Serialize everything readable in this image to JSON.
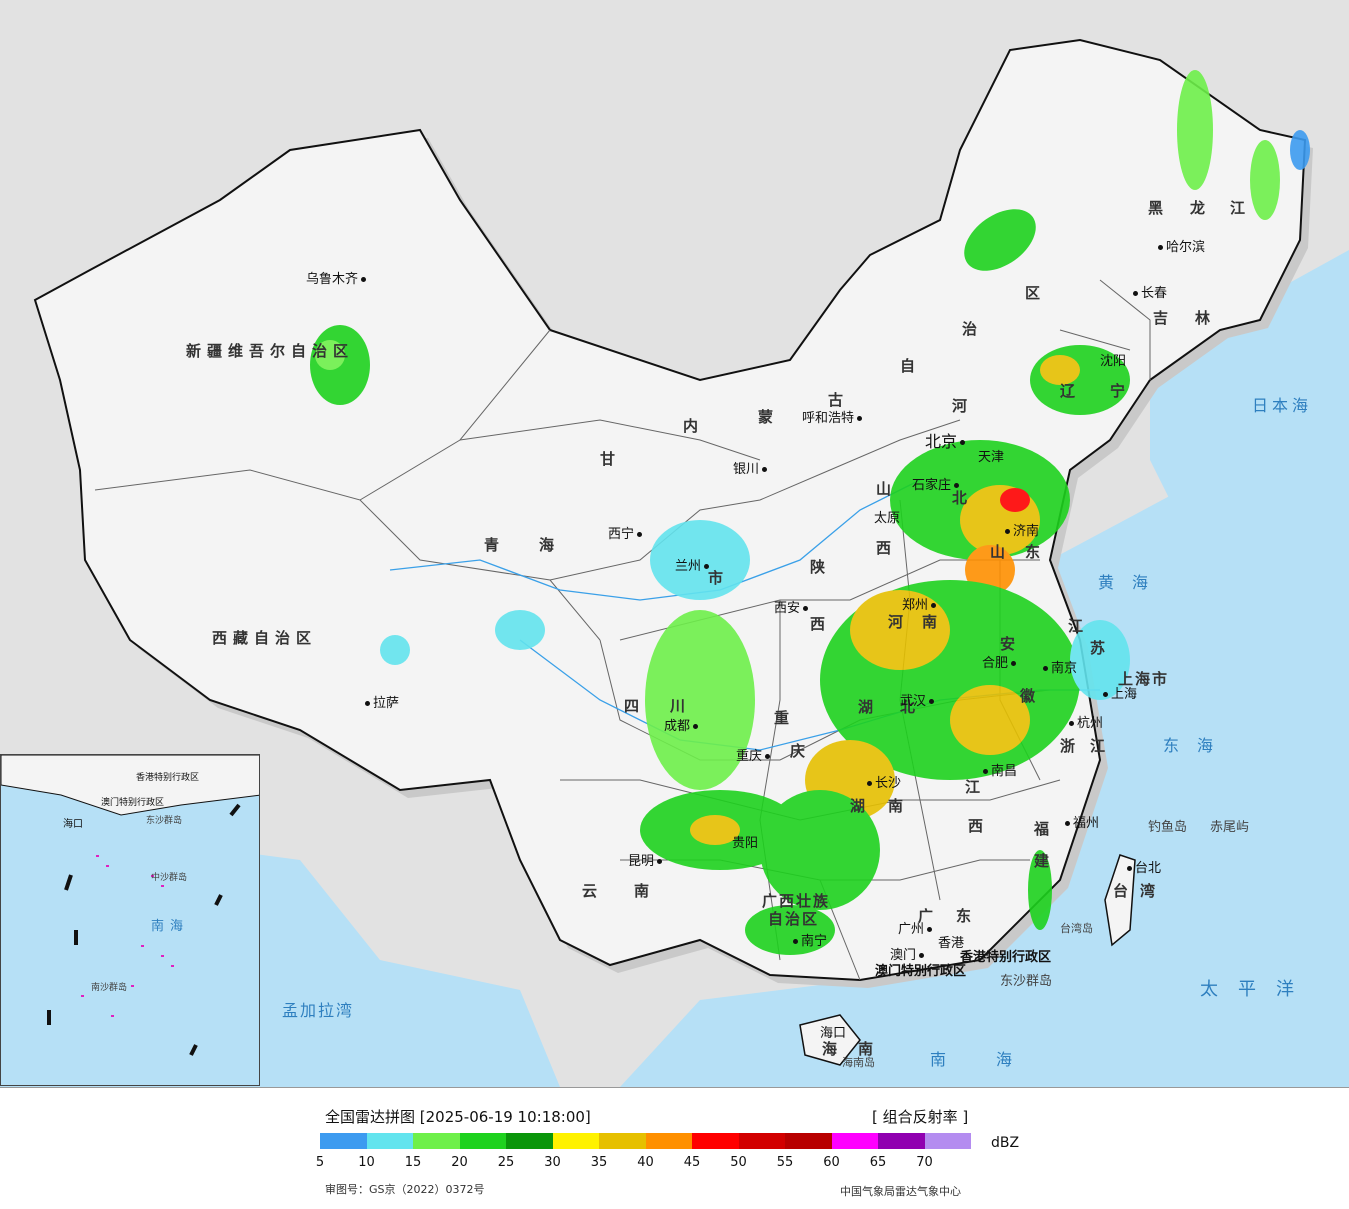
{
  "map": {
    "province_labels": [
      "新疆维吾尔自治区",
      "西藏自治区",
      "青海",
      "甘",
      "内",
      "蒙",
      "古",
      "自",
      "治",
      "区",
      "黑",
      "龙",
      "江",
      "吉",
      "林",
      "辽",
      "宁",
      "河",
      "北",
      "山",
      "西",
      "陕",
      "西",
      "四",
      "川",
      "云",
      "南",
      "湖",
      "北",
      "湖",
      "南",
      "江",
      "西",
      "安",
      "徽",
      "江",
      "苏",
      "浙",
      "江",
      "福",
      "建",
      "广",
      "东",
      "广西壮族",
      "自治区",
      "海",
      "南",
      "台",
      "湾",
      "山",
      "东",
      "河",
      "南",
      "重",
      "庆",
      "市",
      "上海市"
    ],
    "city_labels": [
      "乌鲁木齐",
      "拉萨",
      "西宁",
      "兰州",
      "银川",
      "呼和浩特",
      "北京",
      "天津",
      "石家庄",
      "太原",
      "济南",
      "郑州",
      "西安",
      "成都",
      "重庆",
      "武汉",
      "合肥",
      "南京",
      "上海",
      "杭州",
      "长沙",
      "南昌",
      "福州",
      "台北",
      "贵阳",
      "昆明",
      "南宁",
      "广州",
      "香港",
      "澳门",
      "海口",
      "哈尔滨",
      "长春",
      "沈阳"
    ],
    "sea_labels": [
      "日本海",
      "黄海",
      "东海",
      "太平洋",
      "南海",
      "孟加拉湾"
    ],
    "special_labels": [
      "香港特别行政区",
      "澳门特别行政区",
      "东沙群岛",
      "钓鱼岛",
      "赤尾屿",
      "台湾岛",
      "海南岛"
    ],
    "inset_labels": [
      "南海",
      "海口",
      "东沙群岛",
      "中沙群岛",
      "南沙群岛",
      "香港特别行政区",
      "澳门特别行政区"
    ]
  },
  "legend": {
    "title": "全国雷达拼图 [2025-06-19 10:18:00]",
    "type": "[ 组合反射率 ]",
    "unit": "dBZ",
    "ticks": [
      "5",
      "10",
      "15",
      "20",
      "25",
      "30",
      "35",
      "40",
      "45",
      "50",
      "55",
      "60",
      "65",
      "70"
    ],
    "colors": [
      "#3d9bf0",
      "#63e4ee",
      "#6ef04a",
      "#1ed21e",
      "#0a960a",
      "#fff200",
      "#e6c000",
      "#ff9000",
      "#ff0000",
      "#d20000",
      "#b80000",
      "#ff00ff",
      "#9000b0",
      "#b48cf0"
    ],
    "approval": "审图号：GS京（2022）0372号",
    "credit": "中国气象局雷达气象中心"
  }
}
